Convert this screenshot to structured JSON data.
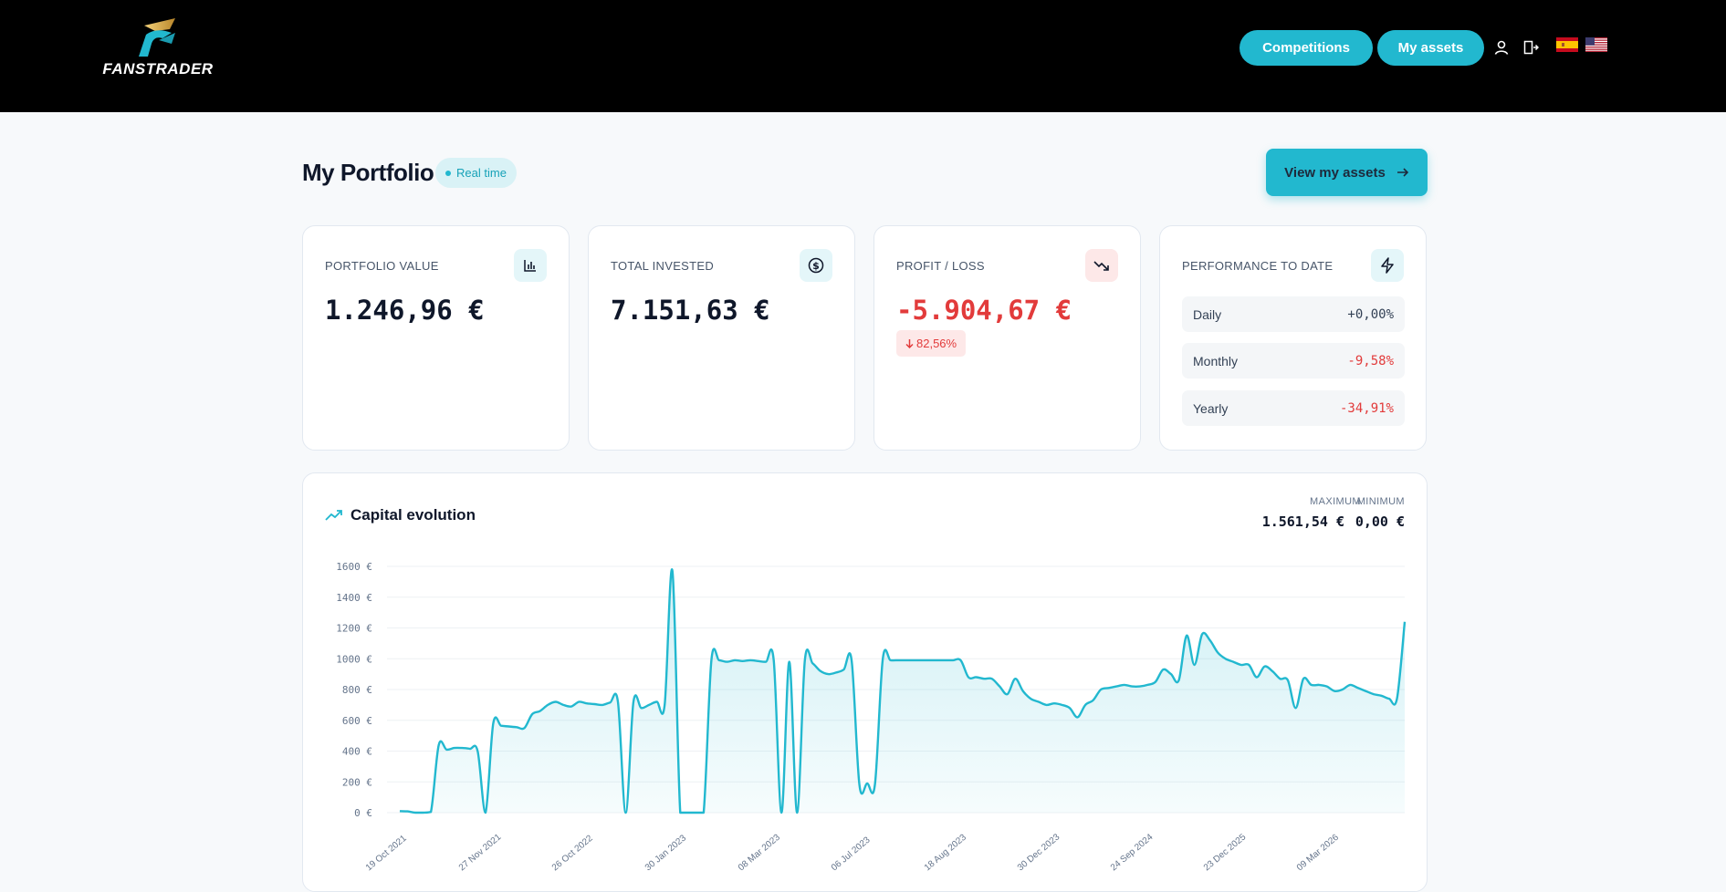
{
  "header": {
    "brand": "FANSTRADER",
    "nav": {
      "competitions": "Competitions",
      "my_assets": "My assets"
    },
    "icons": {
      "user": "user-icon",
      "logout": "logout-icon",
      "flag_es": "spain-flag-icon",
      "flag_us": "usa-flag-icon"
    },
    "accent_color": "#22b8cf"
  },
  "portfolio": {
    "title": "My Portfolio",
    "badge": "Real time",
    "view_button": "View my assets"
  },
  "cards": {
    "value": {
      "label": "PORTFOLIO VALUE",
      "amount": "1.246,96 €",
      "icon": "bar-chart-icon"
    },
    "invested": {
      "label": "TOTAL INVESTED",
      "amount": "7.151,63 €",
      "icon": "dollar-coin-icon"
    },
    "profit": {
      "label": "PROFIT / LOSS",
      "amount": "-5.904,67 €",
      "change": "82,56%",
      "icon": "trending-down-icon",
      "color": "#e23b3b"
    },
    "performance": {
      "label": "PERFORMANCE TO DATE",
      "icon": "lightning-icon",
      "rows": [
        {
          "name": "Daily",
          "value": "+0,00%"
        },
        {
          "name": "Monthly",
          "value": "-9,58%"
        },
        {
          "name": "Yearly",
          "value": "-34,91%"
        }
      ]
    }
  },
  "chart": {
    "title": "Capital evolution",
    "icon": "trending-up-icon",
    "max_label": "MAXIMUM",
    "max_value": "1.561,54 €",
    "min_label": "MINIMUM",
    "min_value": "0,00 €"
  },
  "chart_data": {
    "type": "area",
    "title": "Capital evolution",
    "xlabel": "",
    "ylabel": "",
    "ylim": [
      0,
      1600
    ],
    "yticks": [
      0,
      200,
      400,
      600,
      800,
      1000,
      1200,
      1400,
      1600
    ],
    "ytick_suffix": " €",
    "x_tick_labels": [
      "19 Oct 2021",
      "27 Nov 2021",
      "26 Oct 2022",
      "30 Jan 2023",
      "08 Mar 2023",
      "06 Jul 2023",
      "18 Aug 2023",
      "30 Dec 2023",
      "24 Sep 2024",
      "23 Dec 2025",
      "09 Mar 2026"
    ],
    "grid": true,
    "color": "#22b8cf",
    "series": [
      {
        "values": [
          10,
          8,
          0,
          0,
          5,
          440,
          410,
          420,
          420,
          415,
          400,
          0,
          580,
          565,
          560,
          555,
          550,
          640,
          660,
          700,
          720,
          700,
          690,
          720,
          710,
          705,
          700,
          715,
          720,
          0,
          720,
          680,
          700,
          720,
          700,
          1570,
          0,
          0,
          0,
          0,
          990,
          990,
          980,
          990,
          985,
          990,
          985,
          980,
          990,
          0,
          980,
          0,
          990,
          970,
          920,
          900,
          910,
          930,
          990,
          180,
          190,
          185,
          1000,
          990,
          990,
          990,
          990,
          990,
          990,
          990,
          990,
          990,
          990,
          880,
          880,
          870,
          870,
          820,
          770,
          870,
          790,
          740,
          720,
          700,
          710,
          700,
          680,
          620,
          700,
          730,
          800,
          810,
          820,
          830,
          820,
          820,
          830,
          850,
          930,
          900,
          860,
          1150,
          960,
          1160,
          1120,
          1040,
          1000,
          980,
          960,
          960,
          880,
          950,
          920,
          870,
          860,
          680,
          870,
          830,
          830,
          820,
          790,
          800,
          830,
          810,
          790,
          770,
          760,
          740,
          740,
          1240
        ]
      }
    ]
  }
}
